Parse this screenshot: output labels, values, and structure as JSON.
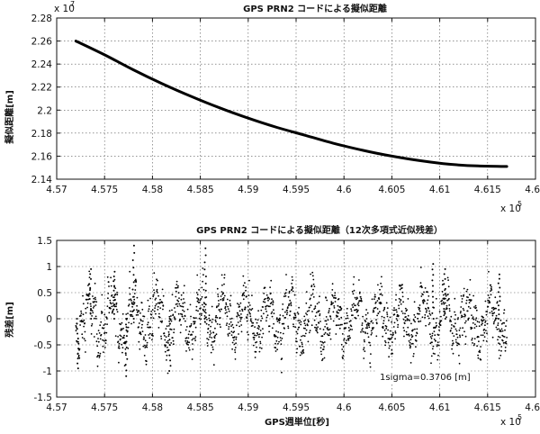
{
  "chart_data": [
    {
      "type": "line",
      "title": "GPS PRN2 コードによる擬似距離",
      "xlabel": "",
      "ylabel": "擬似距離[m]",
      "xlim": [
        457000,
        462000
      ],
      "ylim": [
        21400000,
        22800000
      ],
      "grid": true,
      "x_exponent_label": "x 10",
      "x_exponent": "5",
      "y_exponent_label": "x 10",
      "y_exponent": "7",
      "x_ticks": [
        457000,
        457500,
        458000,
        458500,
        459000,
        459500,
        460000,
        460500,
        461000,
        461500,
        462000
      ],
      "x_tick_labels": [
        "4.57",
        "4.575",
        "4.58",
        "4.585",
        "4.59",
        "4.595",
        "4.6",
        "4.605",
        "4.61",
        "4.615",
        "4.62"
      ],
      "y_ticks": [
        21400000,
        21600000,
        21800000,
        22000000,
        22200000,
        22400000,
        22600000,
        22800000
      ],
      "y_tick_labels": [
        "2.14",
        "2.16",
        "2.18",
        "2.2",
        "2.22",
        "2.24",
        "2.26",
        "2.28"
      ],
      "series": [
        {
          "x": [
            457200,
            457500,
            457800,
            458100,
            458400,
            458700,
            459000,
            459300,
            459600,
            459900,
            460200,
            460500,
            460800,
            461100,
            461400,
            461700
          ],
          "y": [
            22600000,
            22480000,
            22350000,
            22230000,
            22120000,
            22020000,
            21930000,
            21850000,
            21780000,
            21710000,
            21650000,
            21600000,
            21560000,
            21530000,
            21515000,
            21510000
          ]
        }
      ]
    },
    {
      "type": "scatter",
      "title": "GPS PRN2 コードによる擬似距離（12次多項式近似残差）",
      "xlabel": "GPS週単位[秒]",
      "ylabel": "残差[m]",
      "xlim": [
        457000,
        462000
      ],
      "ylim": [
        -1.5,
        1.5
      ],
      "grid": true,
      "x_exponent_label": "x 10",
      "x_exponent": "5",
      "x_ticks": [
        457000,
        457500,
        458000,
        458500,
        459000,
        459500,
        460000,
        460500,
        461000,
        461500,
        462000
      ],
      "x_tick_labels": [
        "4.57",
        "4.575",
        "4.58",
        "4.585",
        "4.59",
        "4.595",
        "4.6",
        "4.605",
        "4.61",
        "4.615",
        "4.62"
      ],
      "y_ticks": [
        -1.5,
        -1,
        -0.5,
        0,
        0.5,
        1,
        1.5
      ],
      "y_tick_labels": [
        "-1.5",
        "-1",
        "-0.5",
        "0",
        "0.5",
        "1",
        "1.5"
      ],
      "annotation": "1sigma=0.3706 [m]",
      "series": [
        {
          "x_range": [
            457200,
            461700
          ],
          "sigma": 0.3706,
          "peaks": [
            {
              "x": 457220,
              "y": -0.95
            },
            {
              "x": 457350,
              "y": 0.95
            },
            {
              "x": 457600,
              "y": 0.9
            },
            {
              "x": 457730,
              "y": -1.1
            },
            {
              "x": 457800,
              "y": 1.4
            },
            {
              "x": 458180,
              "y": -1.0
            },
            {
              "x": 458550,
              "y": 1.35
            },
            {
              "x": 460930,
              "y": 1.05
            },
            {
              "x": 461050,
              "y": 0.95
            },
            {
              "x": 461620,
              "y": 0.85
            }
          ]
        }
      ]
    }
  ]
}
